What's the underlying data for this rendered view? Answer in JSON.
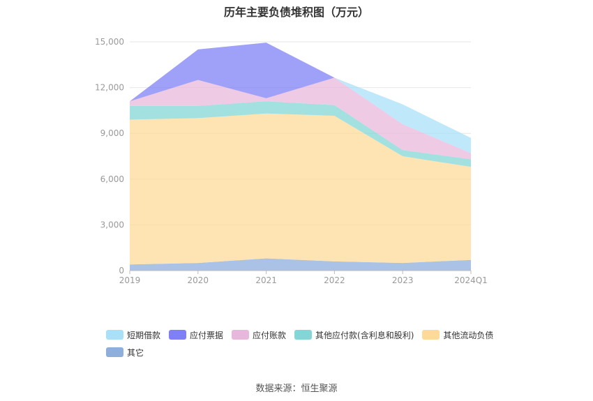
{
  "title": "历年主要负债堆积图（万元）",
  "source": "数据来源：恒生聚源",
  "chart_data": {
    "type": "area",
    "stacked": true,
    "categories": [
      "2019",
      "2020",
      "2021",
      "2022",
      "2023",
      "2024Q1"
    ],
    "ylim": [
      0,
      15000
    ],
    "yticks": [
      0,
      3000,
      6000,
      9000,
      12000,
      15000
    ],
    "ytick_labels": [
      "0",
      "3,000",
      "6,000",
      "9,000",
      "12,000",
      "15,000"
    ],
    "grid": true,
    "legend_position": "bottom",
    "series": [
      {
        "name": "其它",
        "color": "#8eaedc",
        "values": [
          400,
          500,
          800,
          600,
          500,
          700
        ]
      },
      {
        "name": "其他流动负债",
        "color": "#fdd99a",
        "values": [
          9500,
          9500,
          9500,
          9550,
          7000,
          6100
        ]
      },
      {
        "name": "其他应付款(含利息和股利)",
        "color": "#84d6d6",
        "values": [
          900,
          800,
          800,
          700,
          400,
          500
        ]
      },
      {
        "name": "应付账款",
        "color": "#e8b8dc",
        "values": [
          300,
          1700,
          200,
          1800,
          1700,
          400
        ]
      },
      {
        "name": "应付票据",
        "color": "#7f80f5",
        "values": [
          0,
          2000,
          3650,
          0,
          0,
          0
        ]
      },
      {
        "name": "短期借款",
        "color": "#a9e0f8",
        "values": [
          0,
          0,
          0,
          0,
          1300,
          1000
        ]
      }
    ]
  },
  "legend": [
    {
      "name": "短期借款",
      "color": "#a9e0f8"
    },
    {
      "name": "应付票据",
      "color": "#7f80f5"
    },
    {
      "name": "应付账款",
      "color": "#e8b8dc"
    },
    {
      "name": "其他应付款(含利息和股利)",
      "color": "#84d6d6"
    },
    {
      "name": "其他流动负债",
      "color": "#fdd99a"
    },
    {
      "name": "其它",
      "color": "#8eaedc"
    }
  ]
}
